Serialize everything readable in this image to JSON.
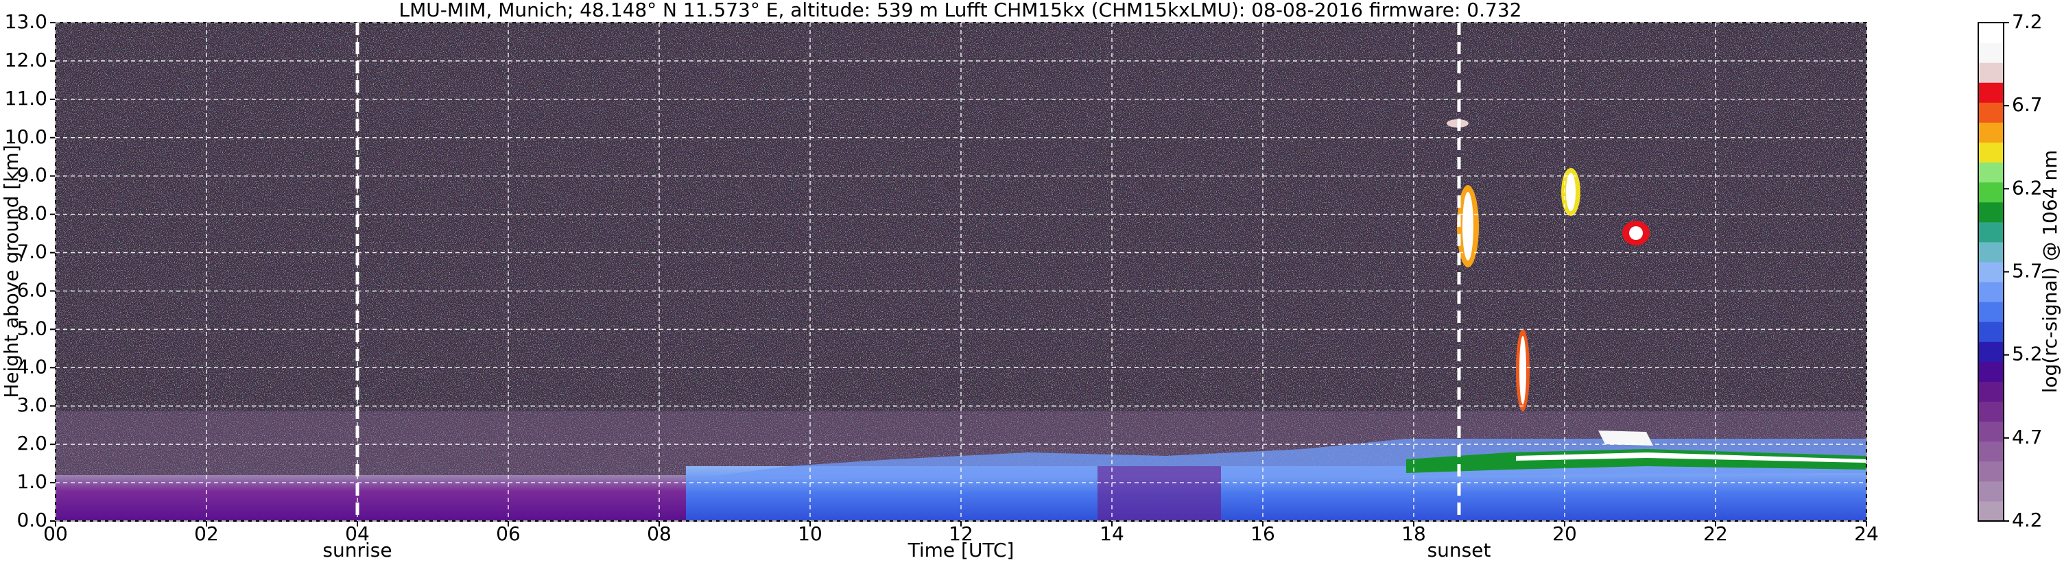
{
  "chart_data": {
    "type": "heatmap",
    "title": "LMU-MIM, Munich; 48.148° N 11.573° E, altitude: 539 m    Lufft CHM15kx (CHM15kxLMU): 08-08-2016    firmware: 0.732",
    "x_label": "Time [UTC]",
    "y_label": "Height above ground [km]",
    "xlim": [
      0,
      24
    ],
    "xticks": [
      {
        "value": 0,
        "label": "00"
      },
      {
        "value": 2,
        "label": "02"
      },
      {
        "value": 4,
        "label": "04"
      },
      {
        "value": 6,
        "label": "06"
      },
      {
        "value": 8,
        "label": "08"
      },
      {
        "value": 10,
        "label": "10"
      },
      {
        "value": 12,
        "label": "12"
      },
      {
        "value": 14,
        "label": "14"
      },
      {
        "value": 16,
        "label": "16"
      },
      {
        "value": 18,
        "label": "18"
      },
      {
        "value": 20,
        "label": "20"
      },
      {
        "value": 22,
        "label": "22"
      },
      {
        "value": 24,
        "label": "24"
      }
    ],
    "ylim": [
      0,
      13
    ],
    "yticks": [
      {
        "value": 0,
        "label": "0.0"
      },
      {
        "value": 1,
        "label": "1.0"
      },
      {
        "value": 2,
        "label": "2.0"
      },
      {
        "value": 3,
        "label": "3.0"
      },
      {
        "value": 4,
        "label": "4.0"
      },
      {
        "value": 5,
        "label": "5.0"
      },
      {
        "value": 6,
        "label": "6.0"
      },
      {
        "value": 7,
        "label": "7.0"
      },
      {
        "value": 8,
        "label": "8.0"
      },
      {
        "value": 9,
        "label": "9.0"
      },
      {
        "value": 10,
        "label": "10.0"
      },
      {
        "value": 11,
        "label": "11.0"
      },
      {
        "value": 12,
        "label": "12.0"
      },
      {
        "value": 13,
        "label": "13.0"
      }
    ],
    "grid": true,
    "markers": [
      {
        "x": 4,
        "label": "sunrise"
      },
      {
        "x": 18.6,
        "label": "sunset"
      }
    ],
    "colorbar": {
      "label": "log(rc-signal) @ 1064 nm",
      "lim": [
        4.2,
        7.2
      ],
      "ticks": [
        4.2,
        4.7,
        5.2,
        5.7,
        6.2,
        6.7,
        7.2
      ],
      "colors": [
        "#b39fb8",
        "#a88bb0",
        "#9c74a6",
        "#905f9e",
        "#834896",
        "#75308f",
        "#651a8c",
        "#4a0c95",
        "#2b1cb0",
        "#2f4fd8",
        "#4a78ee",
        "#6f9af5",
        "#8eb5f5",
        "#6cb8c8",
        "#2ea58a",
        "#15942e",
        "#4ecb3e",
        "#8de57a",
        "#f0e020",
        "#f7a418",
        "#f05a1a",
        "#e8101a",
        "#e8d0d0",
        "#f7f7f7",
        "#ffffff"
      ]
    }
  }
}
